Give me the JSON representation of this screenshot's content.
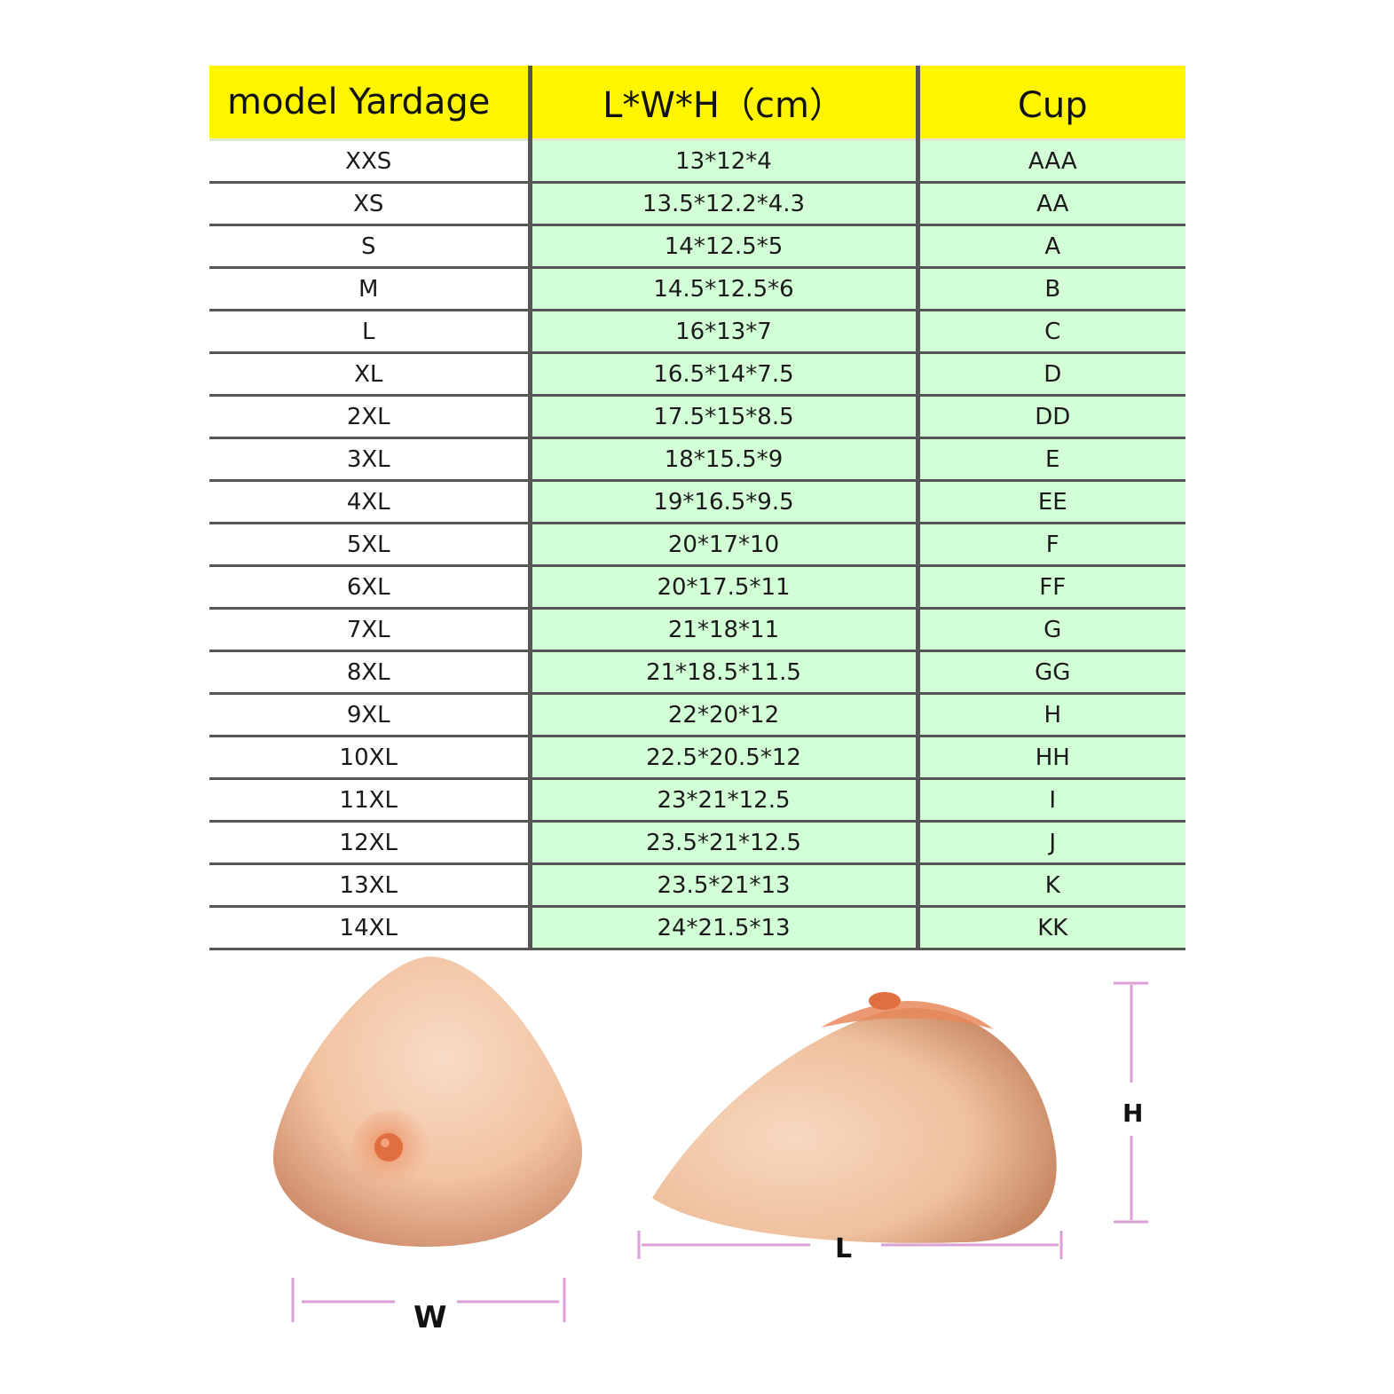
{
  "table": {
    "headers": [
      "model Yardage",
      "L*W*H（cm）",
      "Cup"
    ],
    "rows": [
      {
        "size": "XXS",
        "dims": "13*12*4",
        "cup": "AAA"
      },
      {
        "size": "XS",
        "dims": "13.5*12.2*4.3",
        "cup": "AA"
      },
      {
        "size": "S",
        "dims": "14*12.5*5",
        "cup": "A"
      },
      {
        "size": "M",
        "dims": "14.5*12.5*6",
        "cup": "B"
      },
      {
        "size": "L",
        "dims": "16*13*7",
        "cup": "C"
      },
      {
        "size": "XL",
        "dims": "16.5*14*7.5",
        "cup": "D"
      },
      {
        "size": "2XL",
        "dims": "17.5*15*8.5",
        "cup": "DD"
      },
      {
        "size": "3XL",
        "dims": "18*15.5*9",
        "cup": "E"
      },
      {
        "size": "4XL",
        "dims": "19*16.5*9.5",
        "cup": "EE"
      },
      {
        "size": "5XL",
        "dims": "20*17*10",
        "cup": "F"
      },
      {
        "size": "6XL",
        "dims": "20*17.5*11",
        "cup": "FF"
      },
      {
        "size": "7XL",
        "dims": "21*18*11",
        "cup": "G"
      },
      {
        "size": "8XL",
        "dims": "21*18.5*11.5",
        "cup": "GG"
      },
      {
        "size": "9XL",
        "dims": "22*20*12",
        "cup": "H"
      },
      {
        "size": "10XL",
        "dims": "22.5*20.5*12",
        "cup": "HH"
      },
      {
        "size": "11XL",
        "dims": "23*21*12.5",
        "cup": "I"
      },
      {
        "size": "12XL",
        "dims": "23.5*21*12.5",
        "cup": "J"
      },
      {
        "size": "13XL",
        "dims": "23.5*21*13",
        "cup": "K"
      },
      {
        "size": "14XL",
        "dims": "24*21.5*13",
        "cup": "KK"
      }
    ]
  },
  "diagram": {
    "width_label": "W",
    "length_label": "L",
    "height_label": "H"
  },
  "colors": {
    "header_bg": "#fff500",
    "value_bg": "#d3ffd6",
    "dimension_line": "#d9a0d6",
    "skin": "#f2c3a2",
    "nipple": "#e5794a"
  }
}
